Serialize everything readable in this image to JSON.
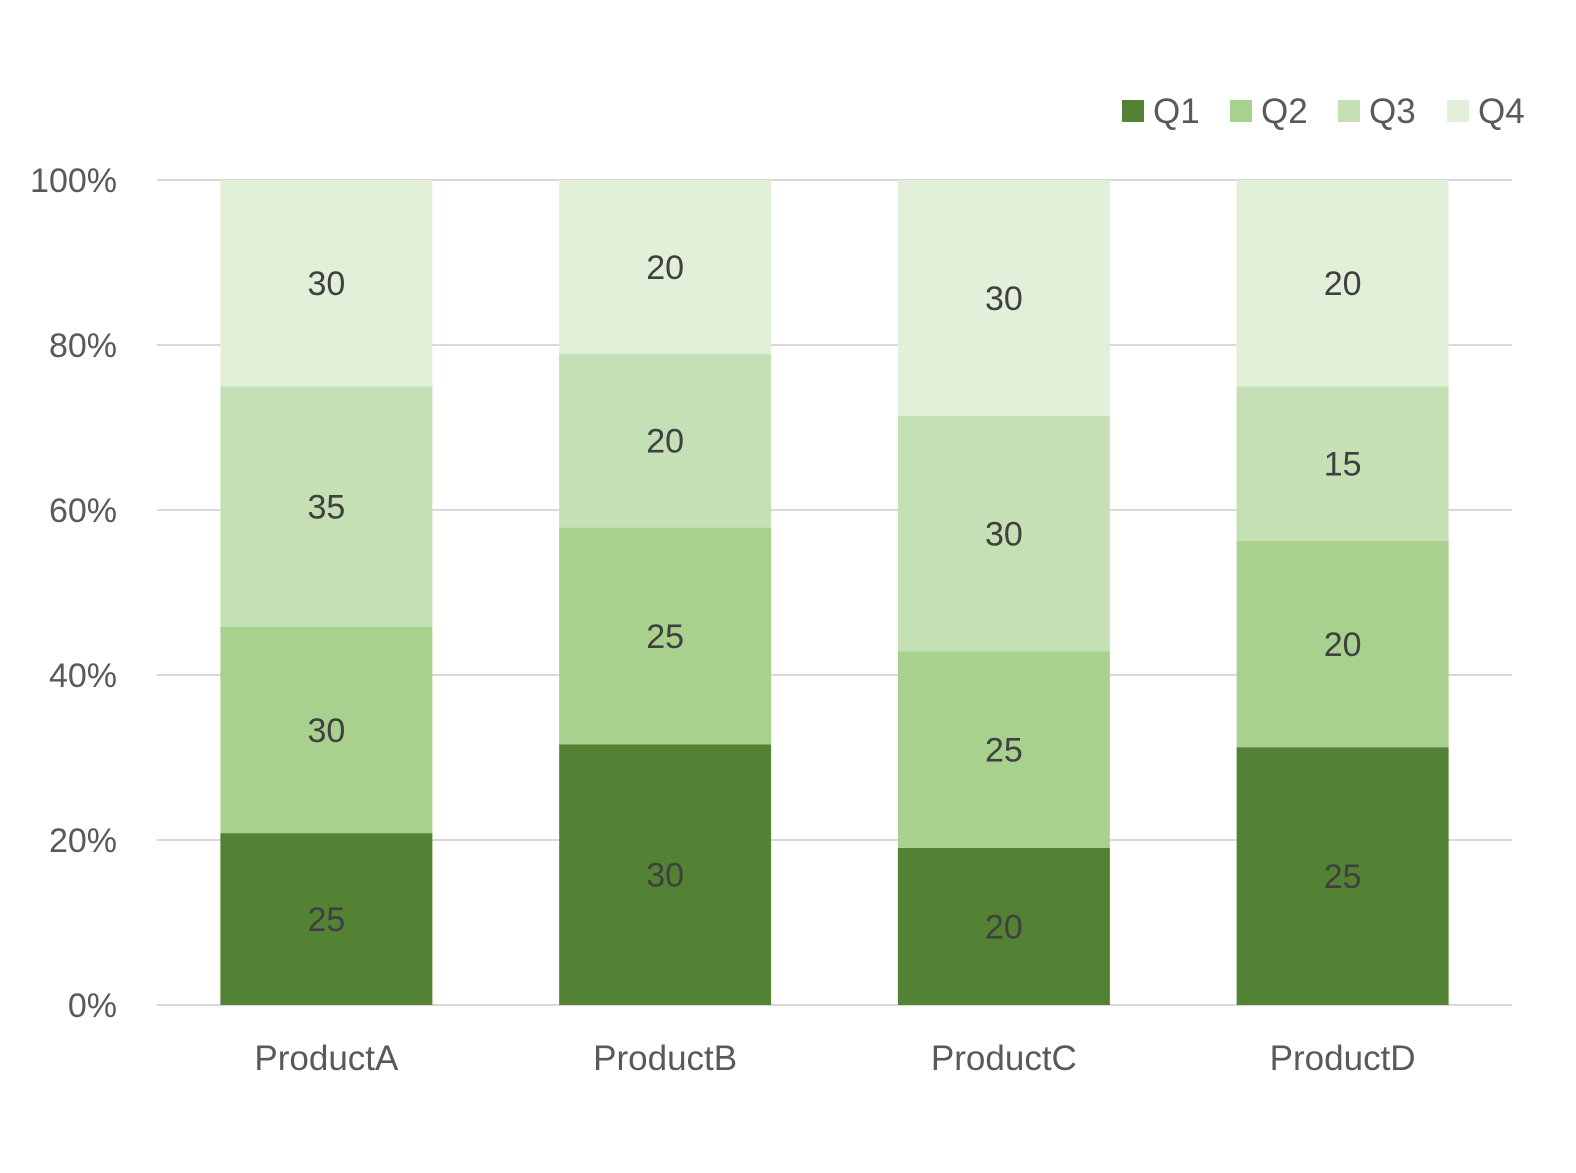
{
  "chart_data": {
    "type": "bar",
    "stacking": "percent",
    "categories": [
      "ProductA",
      "ProductB",
      "ProductC",
      "ProductD"
    ],
    "series": [
      {
        "name": "Q1",
        "values": [
          25,
          30,
          20,
          25
        ],
        "color": "#548235"
      },
      {
        "name": "Q2",
        "values": [
          30,
          25,
          25,
          20
        ],
        "color": "#A9D18E"
      },
      {
        "name": "Q3",
        "values": [
          35,
          20,
          30,
          15
        ],
        "color": "#C5E0B4"
      },
      {
        "name": "Q4",
        "values": [
          30,
          20,
          30,
          20
        ],
        "color": "#E2F0D9"
      }
    ],
    "y_ticks": [
      "0%",
      "20%",
      "40%",
      "60%",
      "80%",
      "100%"
    ],
    "ylim": [
      0,
      100
    ],
    "grid": true,
    "legend": "top-right",
    "data_labels": true
  }
}
